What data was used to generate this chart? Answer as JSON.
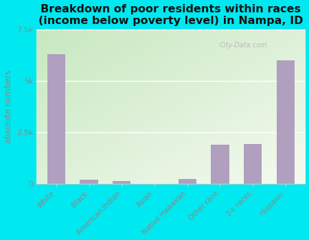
{
  "title": "Breakdown of poor residents within races\n(income below poverty level) in Nampa, ID",
  "categories": [
    "White",
    "Black",
    "American Indian",
    "Asian",
    "Native Hawaiian",
    "Other race",
    "2+ races",
    "Hispanic"
  ],
  "values": [
    6300,
    200,
    150,
    0,
    250,
    1900,
    1950,
    6000
  ],
  "bar_color": "#b09fbe",
  "ylabel": "absolute numbers",
  "ylim": [
    0,
    7500
  ],
  "yticks": [
    0,
    2500,
    5000,
    7500
  ],
  "ytick_labels": [
    "0",
    "2.5k",
    "5k",
    "7.5k"
  ],
  "background_outer": "#00e8f0",
  "background_inner_top_left": "#c8e8c0",
  "background_inner_bottom_right": "#f4faf0",
  "title_fontsize": 11.5,
  "title_color": "#111111",
  "tick_label_color": "#888888",
  "ylabel_color": "#888888",
  "watermark": "City-Data.com",
  "grid_color": "#ffffff",
  "spine_color": "#cccccc"
}
